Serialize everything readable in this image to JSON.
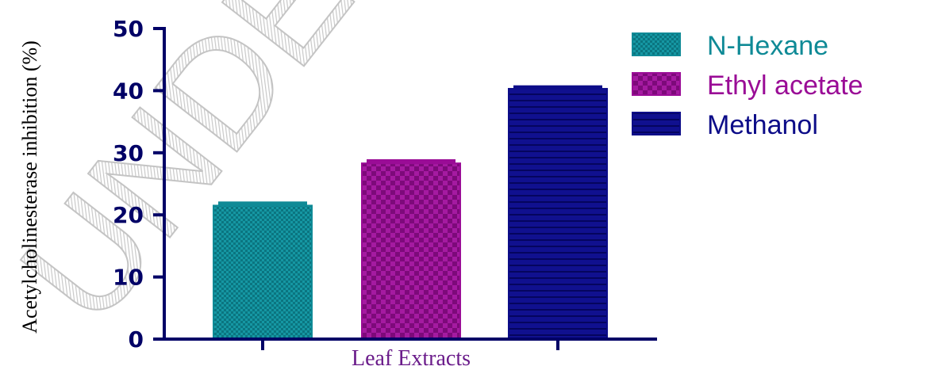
{
  "chart_data": {
    "type": "bar",
    "title": "",
    "xlabel": "Leaf Extracts",
    "ylabel": "Acetylcholinesterase inhibition (%)",
    "ylim": [
      0,
      50
    ],
    "yticks": [
      "0",
      "10",
      "20",
      "30",
      "40",
      "50"
    ],
    "grid": false,
    "legend_position": "right",
    "watermark": "UNDER PEER REVIEW",
    "series": [
      {
        "name": "N-Hexane",
        "value": 21.5,
        "error": 0.4,
        "color": "#0f8a96",
        "pattern": "checkered"
      },
      {
        "name": "Ethyl acetate",
        "value": 28.3,
        "error": 0.4,
        "color": "#9a0c96",
        "pattern": "checkered-large"
      },
      {
        "name": "Methanol",
        "value": 40.3,
        "error": 0.3,
        "color": "#0c0c88",
        "pattern": "horizontal-lines"
      }
    ],
    "colors": {
      "axis": "#000066",
      "xlabel": "#6a1b8a"
    }
  }
}
